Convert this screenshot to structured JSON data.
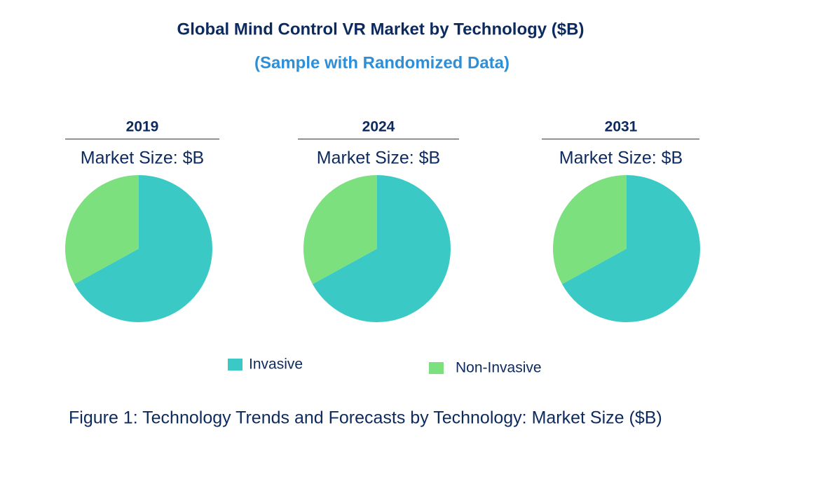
{
  "title": "Global Mind Control VR Market by Technology ($B)",
  "subtitle": "(Sample with Randomized Data)",
  "caption": "Figure 1: Technology Trends and Forecasts by Technology: Market Size ($B)",
  "chart_data": [
    {
      "type": "pie",
      "title": "2019",
      "subtitle": "Market Size: $B",
      "categories": [
        "Invasive",
        "Non-Invasive"
      ],
      "values": [
        67,
        33
      ],
      "colors": [
        "#3ac9c5",
        "#7de07f"
      ]
    },
    {
      "type": "pie",
      "title": "2024",
      "subtitle": "Market Size: $B",
      "categories": [
        "Invasive",
        "Non-Invasive"
      ],
      "values": [
        67,
        33
      ],
      "colors": [
        "#3ac9c5",
        "#7de07f"
      ]
    },
    {
      "type": "pie",
      "title": "2031",
      "subtitle": "Market Size: $B",
      "categories": [
        "Invasive",
        "Non-Invasive"
      ],
      "values": [
        67,
        33
      ],
      "colors": [
        "#3ac9c5",
        "#7de07f"
      ]
    }
  ]
}
